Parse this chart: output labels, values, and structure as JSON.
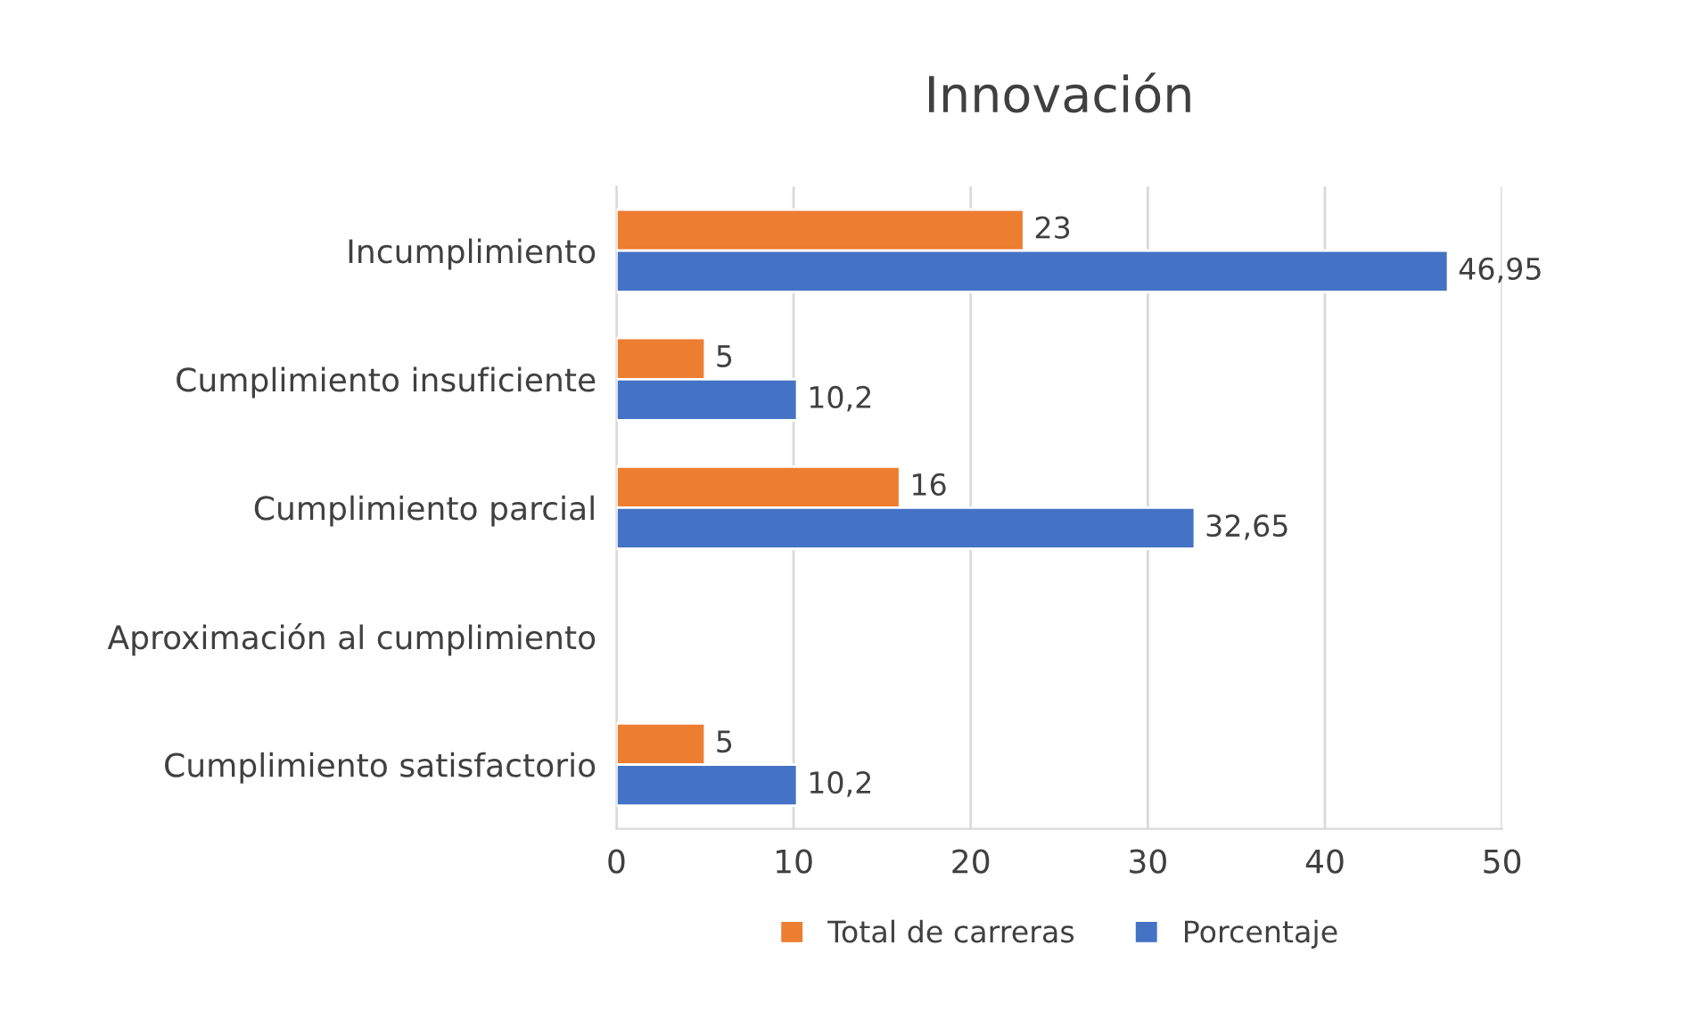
{
  "chart_data": {
    "type": "bar",
    "orientation": "horizontal",
    "title": "Innovación",
    "categories": [
      "Incumplimiento",
      "Cumplimiento insuficiente",
      "Cumplimiento parcial",
      "Aproximación al cumplimiento",
      "Cumplimiento satisfactorio"
    ],
    "series": [
      {
        "name": "Total de carreras",
        "color": "#ed7d31",
        "values": [
          23,
          5,
          16,
          null,
          5
        ],
        "value_labels": [
          "23",
          "5",
          "16",
          null,
          "5"
        ]
      },
      {
        "name": "Porcentaje",
        "color": "#4472c4",
        "values": [
          46.95,
          10.2,
          32.65,
          null,
          10.2
        ],
        "value_labels": [
          "46,95",
          "10,2",
          "32,65",
          null,
          "10,2"
        ]
      }
    ],
    "xlim": [
      0,
      50
    ],
    "xticks": [
      0,
      10,
      20,
      30,
      40,
      50
    ],
    "grid": "x",
    "legend": "bottom"
  }
}
